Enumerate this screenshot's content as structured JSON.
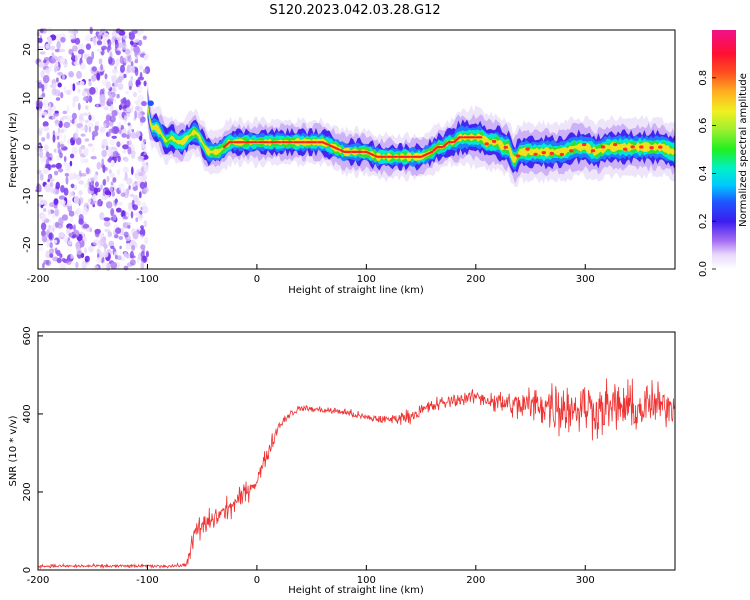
{
  "figure": {
    "title": "S120.2023.042.03.28.G12"
  },
  "chart_data": [
    {
      "type": "heatmap",
      "xlabel": "Height of straight line (km)",
      "ylabel": "Frequency (Hz)",
      "xlim": [
        -200,
        382
      ],
      "ylim": [
        -25,
        24
      ],
      "x_ticks": [
        -200,
        -100,
        0,
        100,
        200,
        300
      ],
      "y_ticks": [
        -20,
        -10,
        0,
        10,
        20
      ],
      "colorbar": {
        "label": "Normalized spectral amplitude",
        "range": [
          0,
          1
        ],
        "ticks": [
          "0.0",
          "0.2",
          "0.4",
          "0.6",
          "0.8"
        ],
        "colormap": "gist_ncar-like (white → purple → blue → cyan → green → yellow → orange → red → magenta)"
      },
      "noise_region_x": [
        -200,
        -100
      ],
      "ridge_line": {
        "description": "frequency of spectral peak vs height",
        "x": [
          -100,
          -97,
          -92,
          -88,
          -83,
          -78,
          -73,
          -68,
          -63,
          -58,
          -55,
          -50,
          -45,
          -40,
          -35,
          -30,
          -25,
          -20,
          -10,
          0,
          10,
          20,
          30,
          40,
          50,
          60,
          70,
          80,
          90,
          100,
          110,
          120,
          130,
          140,
          150,
          160,
          165,
          170,
          175,
          180,
          185,
          190,
          195,
          200,
          205,
          210,
          215,
          220,
          225,
          230,
          235,
          240,
          250,
          260,
          270,
          280,
          290,
          300,
          310,
          320,
          330,
          340,
          350,
          360,
          370,
          380
        ],
        "freq": [
          9,
          4,
          4,
          3,
          1,
          2,
          1,
          1,
          2,
          3,
          3,
          1,
          -1,
          -1,
          -1,
          0,
          1,
          1,
          1,
          1,
          1,
          1,
          1,
          1,
          1,
          1,
          0,
          -1,
          -1,
          -1,
          -2,
          -2,
          -2,
          -2,
          -2,
          -1,
          0,
          0,
          1,
          1,
          2,
          2,
          2,
          2,
          2,
          1,
          1,
          1,
          0,
          0,
          -3,
          -1,
          -1,
          -1,
          -1,
          -1,
          0,
          0,
          -1,
          0,
          0,
          0,
          0,
          0,
          0,
          -1
        ]
      }
    },
    {
      "type": "line",
      "xlabel": "Height of straight line (km)",
      "ylabel": "SNR (10 * v/v)",
      "xlim": [
        -200,
        382
      ],
      "ylim": [
        0,
        610
      ],
      "x_ticks": [
        -200,
        -100,
        0,
        100,
        200,
        300
      ],
      "y_ticks": [
        0,
        200,
        400,
        600
      ],
      "series": [
        {
          "color": "#ee3333",
          "envelope": {
            "x": [
              -200,
              -160,
              -120,
              -80,
              -65,
              -60,
              -55,
              -50,
              -40,
              -30,
              -20,
              -10,
              0,
              10,
              20,
              30,
              40,
              60,
              80,
              100,
              120,
              140,
              160,
              180,
              200,
              220,
              240,
              260,
              270,
              280,
              290,
              300,
              310,
              320,
              330,
              340,
              350,
              360,
              370,
              382
            ],
            "center": [
              10,
              10,
              10,
              10,
              12,
              60,
              100,
              110,
              130,
              150,
              170,
              200,
              230,
              300,
              370,
              400,
              415,
              410,
              405,
              390,
              385,
              395,
              420,
              435,
              445,
              430,
              420,
              425,
              420,
              420,
              415,
              420,
              410,
              415,
              420,
              415,
              410,
              425,
              420,
              420
            ],
            "noise_amp": [
              6,
              6,
              6,
              6,
              8,
              40,
              55,
              50,
              45,
              45,
              40,
              40,
              35,
              30,
              25,
              15,
              12,
              12,
              15,
              15,
              18,
              25,
              30,
              25,
              25,
              45,
              60,
              80,
              95,
              110,
              100,
              95,
              100,
              95,
              100,
              95,
              90,
              90,
              70,
              70
            ]
          }
        }
      ]
    }
  ]
}
